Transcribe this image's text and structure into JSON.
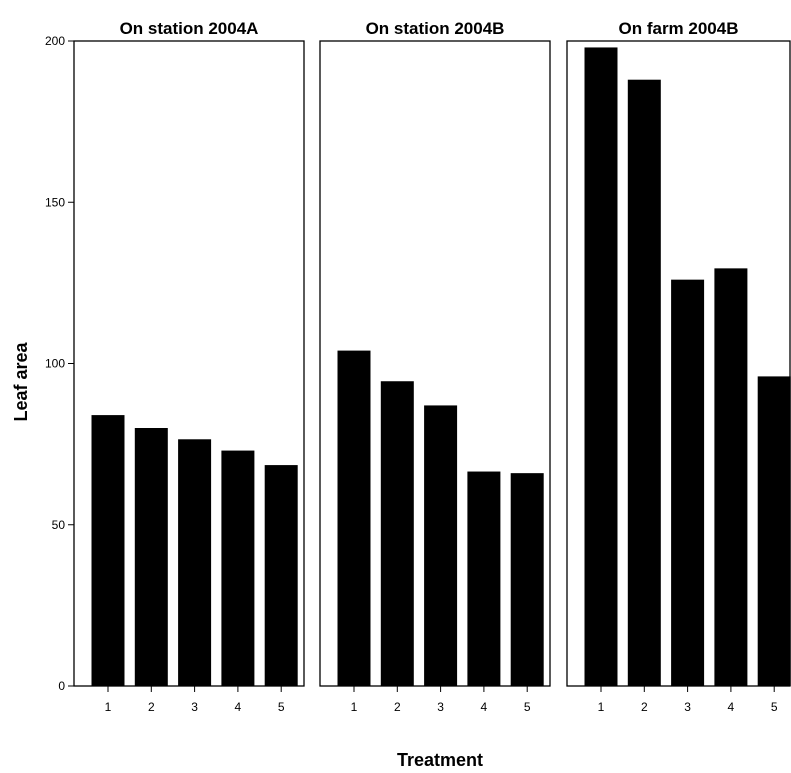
{
  "chart_data": [
    {
      "type": "bar",
      "title": "On station 2004A",
      "categories": [
        "1",
        "2",
        "3",
        "4",
        "5"
      ],
      "values": [
        84,
        80,
        76.5,
        73,
        68.5
      ],
      "xlabel": "Treatment",
      "ylabel": "Leaf area",
      "ylim": [
        0,
        200
      ],
      "yticks": [
        "0",
        "50",
        "100",
        "150",
        "200"
      ],
      "grid": false,
      "bar_color": "#000000"
    },
    {
      "type": "bar",
      "title": "On station 2004B",
      "categories": [
        "1",
        "2",
        "3",
        "4",
        "5"
      ],
      "values": [
        104,
        94.5,
        87,
        66.5,
        66
      ],
      "xlabel": "Treatment",
      "ylabel": "Leaf area",
      "ylim": [
        0,
        200
      ],
      "grid": false,
      "bar_color": "#000000"
    },
    {
      "type": "bar",
      "title": "On farm 2004B",
      "categories": [
        "1",
        "2",
        "3",
        "4",
        "5"
      ],
      "values": [
        198,
        188,
        126,
        129.5,
        96
      ],
      "xlabel": "Treatment",
      "ylabel": "Leaf area",
      "ylim": [
        0,
        200
      ],
      "grid": false,
      "bar_color": "#000000"
    }
  ],
  "axes": {
    "xlabel": "Treatment",
    "ylabel": "Leaf area"
  }
}
